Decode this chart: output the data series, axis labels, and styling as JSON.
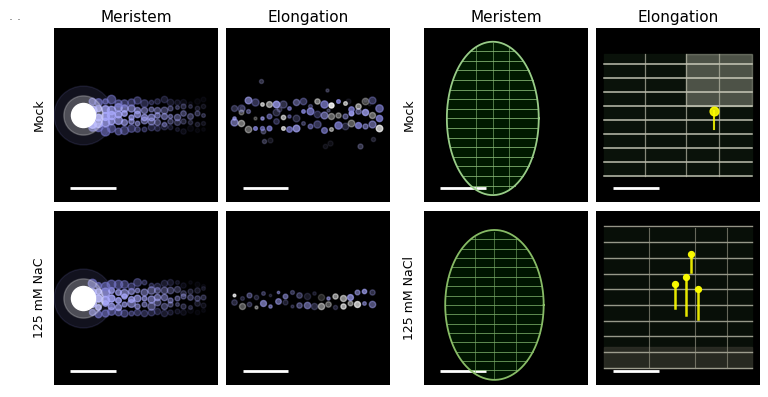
{
  "background_color": "#ffffff",
  "panel_bg": "#000000",
  "col_headers_left": [
    "Meristem",
    "Elongation"
  ],
  "col_headers_right": [
    "Meristem",
    "Elongation"
  ],
  "row_labels_left": [
    "Mock",
    "125 mM NaC"
  ],
  "row_labels_right": [
    "Mock",
    "125 mM NaCl"
  ],
  "text_color": "#000000",
  "scale_bar_color": "#ffffff",
  "header_fontsize": 11,
  "label_fontsize": 9,
  "fig_width": 7.68,
  "fig_height": 3.97
}
